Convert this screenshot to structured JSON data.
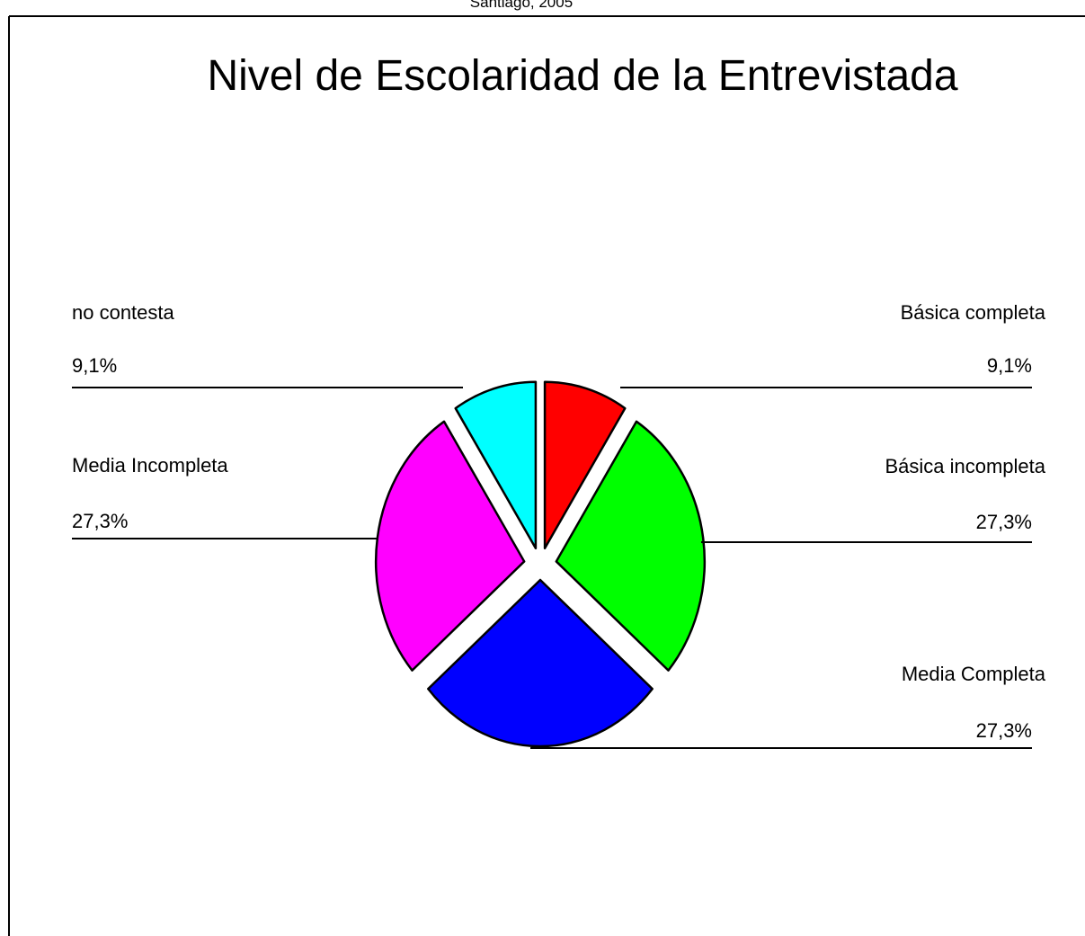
{
  "chart_data": {
    "type": "pie",
    "subtitle": "Santiago, 2005",
    "title": "Nivel de Escolaridad de la Entrevistada",
    "categories": [
      "Básica completa",
      "Básica incompleta",
      "Media Completa",
      "Media Incompleta",
      "no contesta"
    ],
    "values": [
      9.1,
      27.3,
      27.3,
      27.3,
      9.1
    ],
    "value_labels": [
      "9,1%",
      "27,3%",
      "27,3%",
      "27,3%",
      "9,1%"
    ],
    "colors": [
      "#ff0000",
      "#00ff00",
      "#0000ff",
      "#ff00ff",
      "#00ffff"
    ]
  }
}
